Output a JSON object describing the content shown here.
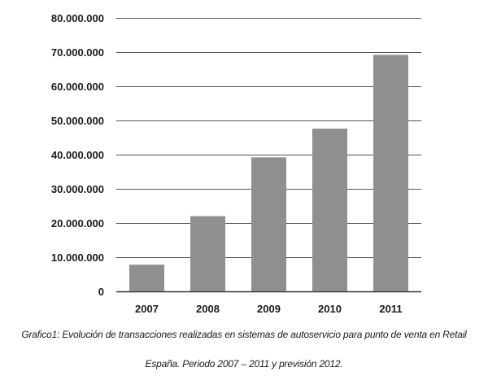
{
  "chart_data": {
    "type": "bar",
    "categories": [
      "2007",
      "2008",
      "2009",
      "2010",
      "2011"
    ],
    "values": [
      7800000,
      22000000,
      39200000,
      47600000,
      69200000
    ],
    "ylim": [
      0,
      80000000
    ],
    "y_ticks": [
      0,
      10000000,
      20000000,
      30000000,
      40000000,
      50000000,
      60000000,
      70000000,
      80000000
    ],
    "y_tick_labels": [
      "0",
      "10.000.000",
      "20.000.000",
      "30.000.000",
      "40.000.000",
      "50.000.000",
      "60.000.000",
      "70.000.000",
      "80.000.000"
    ],
    "grid": true,
    "bar_color": "#8f8f8f",
    "grid_color": "#555555"
  },
  "caption": {
    "line1": "Grafico1: Evolución de transacciones realizadas en sistemas de autoservicio para punto de venta en Retail",
    "line2": "España. Periodo 2007 – 2011 y previsión 2012."
  }
}
